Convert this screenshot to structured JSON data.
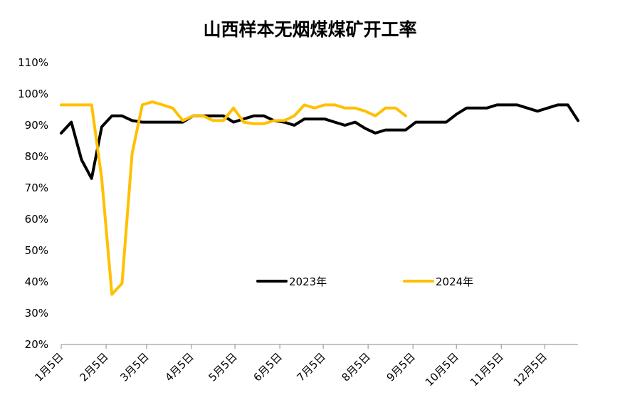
{
  "chart_data": {
    "type": "line",
    "title": "山西样本无烟煤煤矿开工率",
    "xlabel": "",
    "ylabel": "",
    "ylim": [
      20,
      110
    ],
    "y_ticks": [
      "20%",
      "30%",
      "40%",
      "50%",
      "60%",
      "70%",
      "80%",
      "90%",
      "100%",
      "110%"
    ],
    "x_ticks": [
      "1月5日",
      "2月5日",
      "3月5日",
      "4月5日",
      "5月5日",
      "6月5日",
      "7月5日",
      "8月5日",
      "9月5日",
      "10月5日",
      "11月5日",
      "12月5日"
    ],
    "legend_position": "bottom-center",
    "series": [
      {
        "name": "2023年",
        "color": "#000000",
        "points": [
          [
            1,
            87.5
          ],
          [
            2,
            91
          ],
          [
            3,
            79
          ],
          [
            4,
            73
          ],
          [
            5,
            89.5
          ],
          [
            6,
            93
          ],
          [
            7,
            93
          ],
          [
            8,
            91.5
          ],
          [
            9,
            91
          ],
          [
            10,
            91
          ],
          [
            11,
            91
          ],
          [
            12,
            91
          ],
          [
            13,
            91
          ],
          [
            14,
            93
          ],
          [
            15,
            93
          ],
          [
            16,
            93
          ],
          [
            17,
            93
          ],
          [
            18,
            91
          ],
          [
            19,
            92
          ],
          [
            20,
            93
          ],
          [
            21,
            93
          ],
          [
            22,
            91.5
          ],
          [
            23,
            91
          ],
          [
            24,
            90
          ],
          [
            25,
            92
          ],
          [
            26,
            92
          ],
          [
            27,
            92
          ],
          [
            28,
            91
          ],
          [
            29,
            90
          ],
          [
            30,
            91
          ],
          [
            31,
            89
          ],
          [
            32,
            87.5
          ],
          [
            33,
            88.5
          ],
          [
            34,
            88.5
          ],
          [
            35,
            88.5
          ],
          [
            36,
            91
          ],
          [
            37,
            91
          ],
          [
            38,
            91
          ],
          [
            39,
            91
          ],
          [
            40,
            93.5
          ],
          [
            41,
            95.5
          ],
          [
            42,
            95.5
          ],
          [
            43,
            95.5
          ],
          [
            44,
            96.5
          ],
          [
            45,
            96.5
          ],
          [
            46,
            96.5
          ],
          [
            47,
            95.5
          ],
          [
            48,
            94.5
          ],
          [
            49,
            95.5
          ],
          [
            50,
            96.5
          ],
          [
            51,
            96.5
          ],
          [
            52,
            91.5
          ]
        ]
      },
      {
        "name": "2024年",
        "color": "#FFC000",
        "points": [
          [
            1,
            96.5
          ],
          [
            2,
            96.5
          ],
          [
            3,
            96.5
          ],
          [
            4,
            96.5
          ],
          [
            5,
            73
          ],
          [
            6,
            36
          ],
          [
            7,
            39.5
          ],
          [
            8,
            81
          ],
          [
            9,
            96.5
          ],
          [
            10,
            97.5
          ],
          [
            11,
            96.5
          ],
          [
            12,
            95.5
          ],
          [
            13,
            91.5
          ],
          [
            14,
            93
          ],
          [
            15,
            93
          ],
          [
            16,
            91.5
          ],
          [
            17,
            91.5
          ],
          [
            18,
            95.5
          ],
          [
            19,
            91
          ],
          [
            20,
            90.5
          ],
          [
            21,
            90.5
          ],
          [
            22,
            91.5
          ],
          [
            23,
            91.5
          ],
          [
            24,
            93
          ],
          [
            25,
            96.5
          ],
          [
            26,
            95.5
          ],
          [
            27,
            96.5
          ],
          [
            28,
            96.5
          ],
          [
            29,
            95.5
          ],
          [
            30,
            95.5
          ],
          [
            31,
            94.5
          ],
          [
            32,
            93
          ],
          [
            33,
            95.5
          ],
          [
            34,
            95.5
          ],
          [
            35,
            93
          ]
        ]
      }
    ]
  }
}
